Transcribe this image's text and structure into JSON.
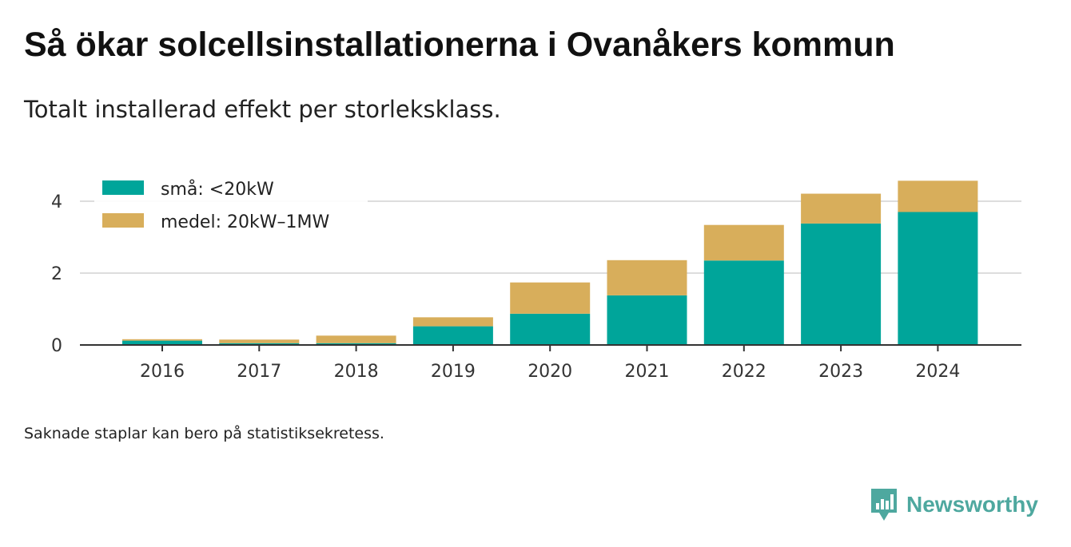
{
  "title": "Så ökar solcellsinstallationerna i Ovanåkers kommun",
  "subtitle": "Totalt installerad effekt per storleksklass.",
  "note": "Saknade staplar kan bero på statistiksekretess.",
  "brand": "Newsworthy",
  "chart_data": {
    "type": "bar",
    "stacked": true,
    "categories": [
      "2016",
      "2017",
      "2018",
      "2019",
      "2020",
      "2021",
      "2022",
      "2023",
      "2024"
    ],
    "series": [
      {
        "name": "små: <20kW",
        "color": "#00a59a",
        "values": [
          0.12,
          0.05,
          0.05,
          0.52,
          0.87,
          1.38,
          2.35,
          3.38,
          3.7
        ]
      },
      {
        "name": "medel: 20kW–1MW",
        "color": "#d8ae5b",
        "values": [
          0.04,
          0.1,
          0.21,
          0.25,
          0.87,
          0.98,
          0.99,
          0.83,
          0.87
        ]
      }
    ],
    "yticks": [
      "0",
      "2",
      "4"
    ],
    "ylim": [
      0,
      4.6
    ],
    "grid": true,
    "legend": "top-left"
  }
}
